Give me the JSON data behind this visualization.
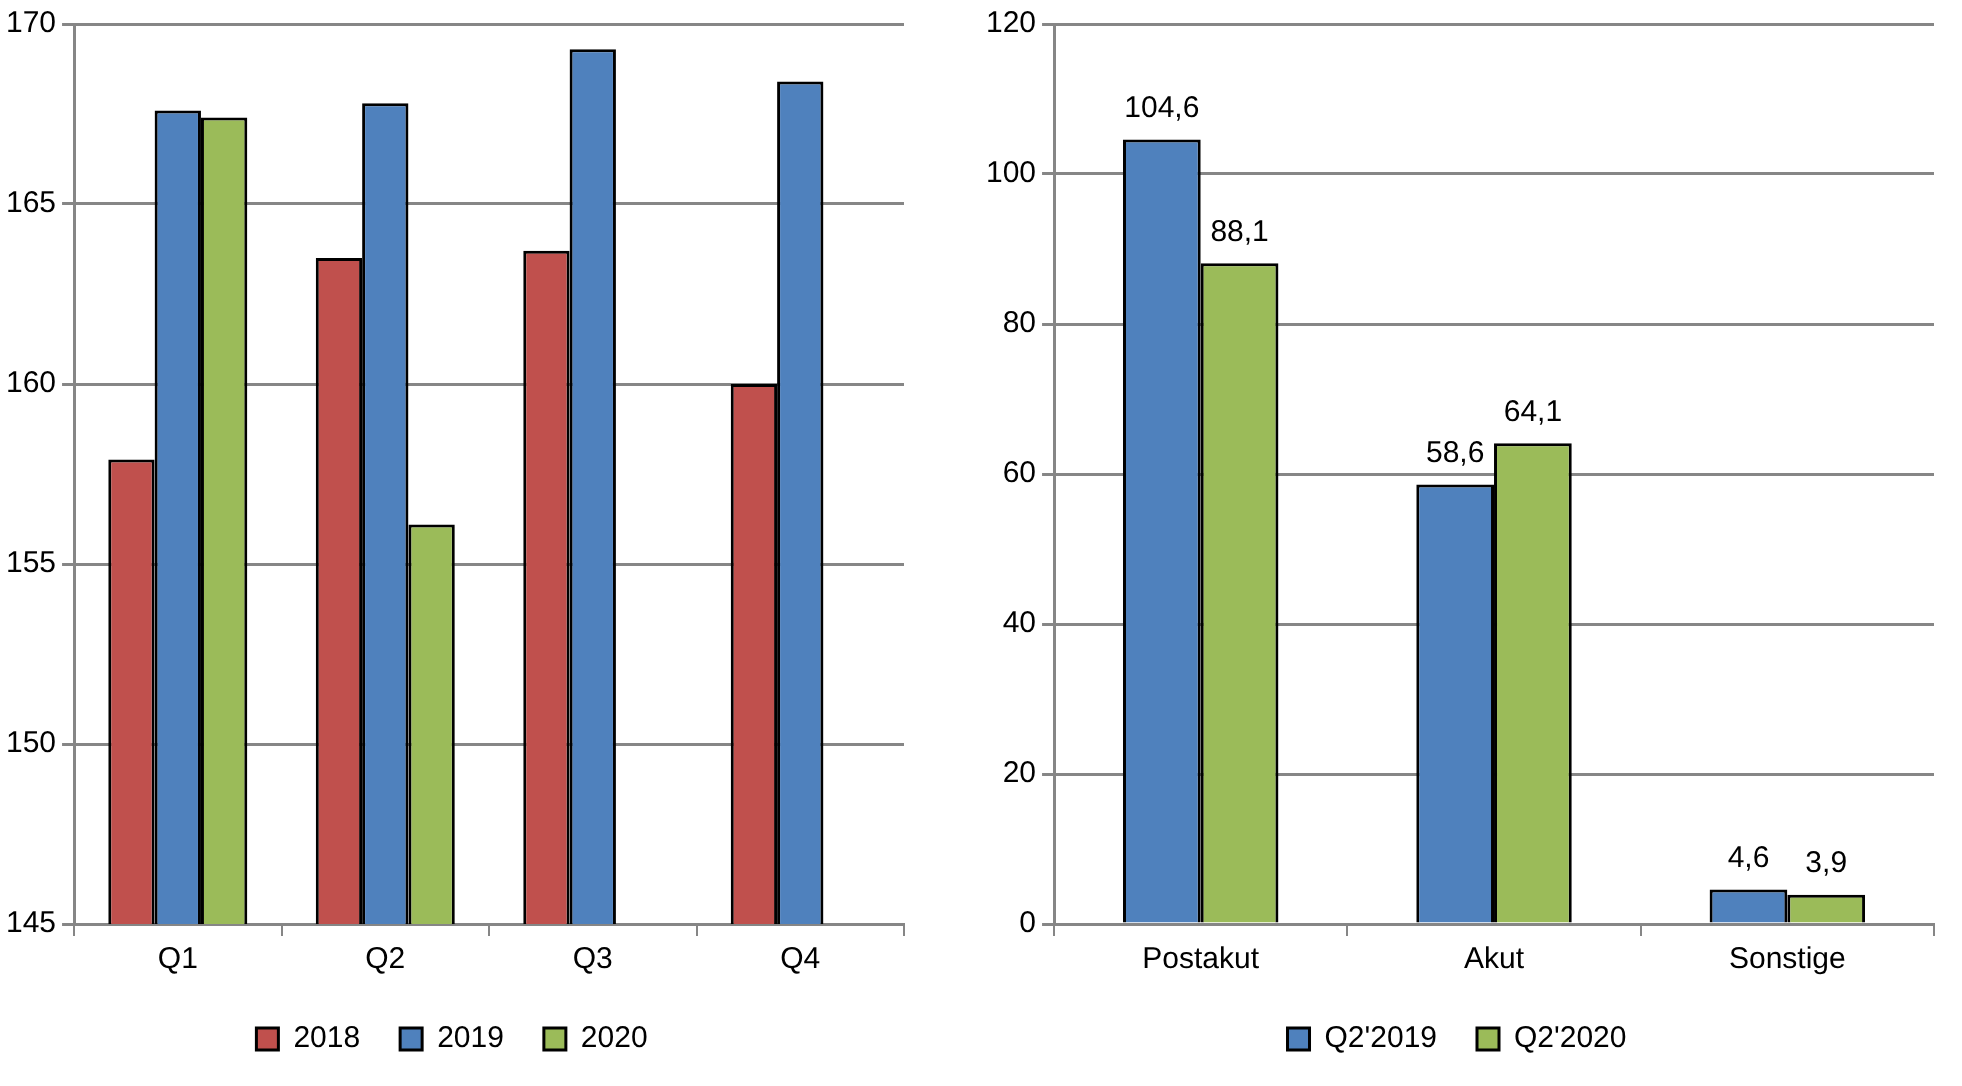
{
  "chart_data": [
    {
      "type": "bar",
      "categories": [
        "Q1",
        "Q2",
        "Q3",
        "Q4"
      ],
      "series": [
        {
          "name": "2018",
          "color": "#c0504d",
          "values": [
            157.9,
            163.5,
            163.7,
            160.0
          ]
        },
        {
          "name": "2019",
          "color": "#4f81bd",
          "values": [
            167.6,
            167.8,
            169.3,
            168.4
          ]
        },
        {
          "name": "2020",
          "color": "#9bbb59",
          "values": [
            167.4,
            156.1,
            null,
            null
          ]
        }
      ],
      "ylim": [
        145,
        170
      ],
      "yticks": [
        145,
        150,
        155,
        160,
        165,
        170
      ],
      "grid": "y",
      "legend": "bottom"
    },
    {
      "type": "bar",
      "categories": [
        "Postakut",
        "Akut",
        "Sonstige"
      ],
      "series": [
        {
          "name": "Q2'2019",
          "color": "#4f81bd",
          "values": [
            104.6,
            58.6,
            4.6
          ],
          "value_labels": [
            "104,6",
            "58,6",
            "4,6"
          ]
        },
        {
          "name": "Q2'2020",
          "color": "#9bbb59",
          "values": [
            88.1,
            64.1,
            3.9
          ],
          "value_labels": [
            "88,1",
            "64,1",
            "3,9"
          ]
        }
      ],
      "ylim": [
        0,
        120
      ],
      "yticks": [
        0,
        20,
        40,
        60,
        80,
        100,
        120
      ],
      "grid": "y",
      "legend": "bottom"
    }
  ]
}
